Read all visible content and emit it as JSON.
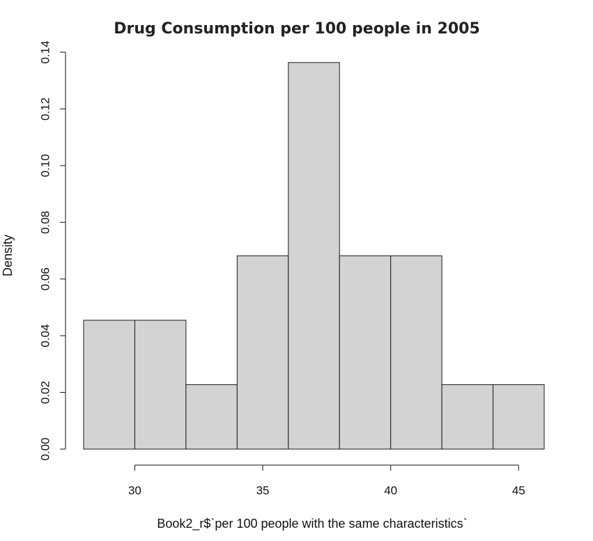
{
  "chart_data": {
    "type": "bar",
    "subtype": "histogram",
    "title": "Drug Consumption per 100 people in 2005",
    "xlabel": "Book2_r$`per 100 people with the same characteristics`",
    "ylabel": "Density",
    "bins": [
      {
        "start": 28,
        "end": 30,
        "density": 0.04545
      },
      {
        "start": 30,
        "end": 32,
        "density": 0.04545
      },
      {
        "start": 32,
        "end": 34,
        "density": 0.02273
      },
      {
        "start": 34,
        "end": 36,
        "density": 0.06818
      },
      {
        "start": 36,
        "end": 38,
        "density": 0.13636
      },
      {
        "start": 38,
        "end": 40,
        "density": 0.06818
      },
      {
        "start": 40,
        "end": 42,
        "density": 0.06818
      },
      {
        "start": 42,
        "end": 44,
        "density": 0.02273
      },
      {
        "start": 44,
        "end": 46,
        "density": 0.02273
      }
    ],
    "xlim": [
      28,
      46
    ],
    "ylim": [
      0,
      0.14
    ],
    "x_ticks": [
      30,
      35,
      40,
      45
    ],
    "x_tick_labels": [
      "30",
      "35",
      "40",
      "45"
    ],
    "y_ticks": [
      0,
      0.02,
      0.04,
      0.06,
      0.08,
      0.1,
      0.12,
      0.14
    ],
    "y_tick_labels": [
      "0.00",
      "0.02",
      "0.04",
      "0.06",
      "0.08",
      "0.10",
      "0.12",
      "0.14"
    ],
    "grid": false,
    "legend": "none",
    "bar_color": "#d3d3d3",
    "border_color": "#1a1a1a"
  }
}
